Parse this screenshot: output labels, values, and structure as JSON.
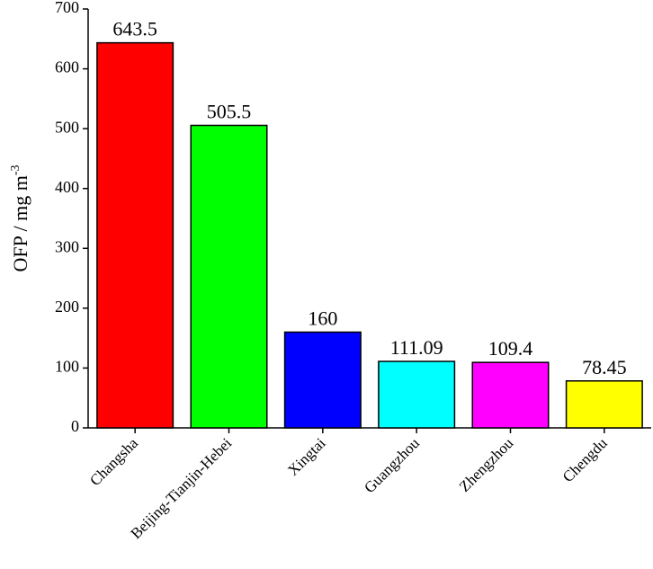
{
  "chart_data": {
    "type": "bar",
    "y_label": "OFP / mg m",
    "y_label_superscript": "-3",
    "categories": [
      "Changsha",
      "Beijing-Tianjin-Hebei",
      "Xingtai",
      "Guangzhou",
      "Zhengzhou",
      "Chengdu"
    ],
    "values": [
      643.5,
      505.5,
      160,
      111.09,
      109.4,
      78.45
    ],
    "colors": [
      "#ff0000",
      "#00ff00",
      "#0000ff",
      "#00ffff",
      "#ff00ff",
      "#ffff00"
    ],
    "ylim": [
      0,
      700
    ],
    "yticks": [
      0,
      100,
      200,
      300,
      400,
      500,
      600,
      700
    ],
    "grid": false
  }
}
